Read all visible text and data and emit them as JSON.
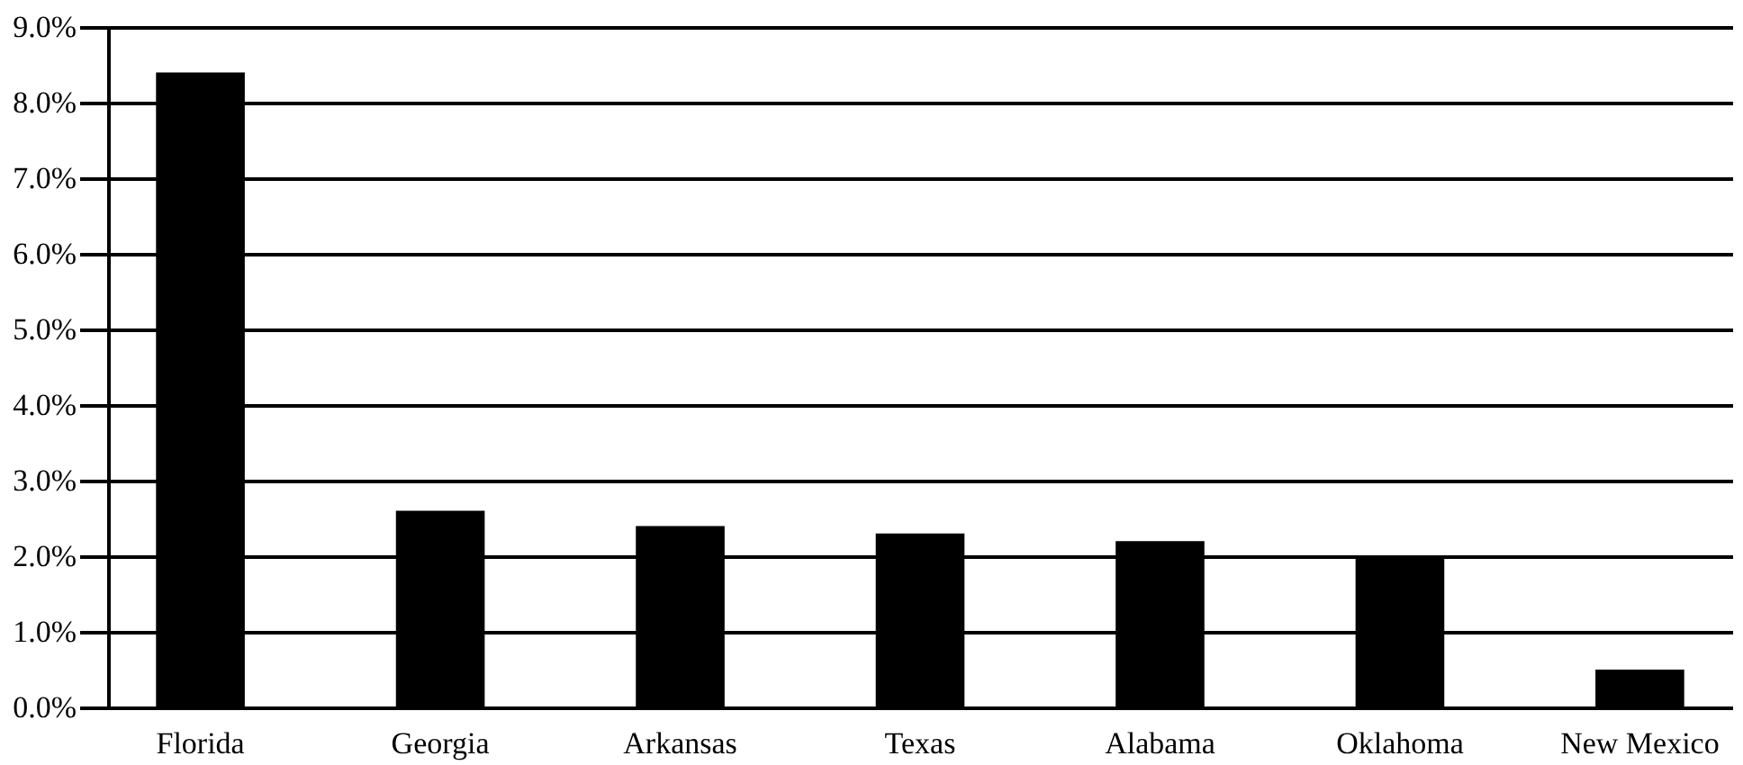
{
  "chart_data": {
    "type": "bar",
    "categories": [
      "Florida",
      "Georgia",
      "Arkansas",
      "Texas",
      "Alabama",
      "Oklahoma",
      "New Mexico"
    ],
    "values": [
      8.4,
      2.6,
      2.4,
      2.3,
      2.2,
      2.0,
      0.5
    ],
    "color": "#000000",
    "ylim": [
      0,
      9
    ],
    "yticks": [
      {
        "value": 0,
        "label": "0.0%"
      },
      {
        "value": 1,
        "label": "1.0%"
      },
      {
        "value": 2,
        "label": "2.0%"
      },
      {
        "value": 3,
        "label": "3.0%"
      },
      {
        "value": 4,
        "label": "4.0%"
      },
      {
        "value": 5,
        "label": "5.0%"
      },
      {
        "value": 6,
        "label": "6.0%"
      },
      {
        "value": 7,
        "label": "7.0%"
      },
      {
        "value": 8,
        "label": "8.0%"
      },
      {
        "value": 9,
        "label": "9.0%"
      }
    ],
    "grid": "y"
  }
}
